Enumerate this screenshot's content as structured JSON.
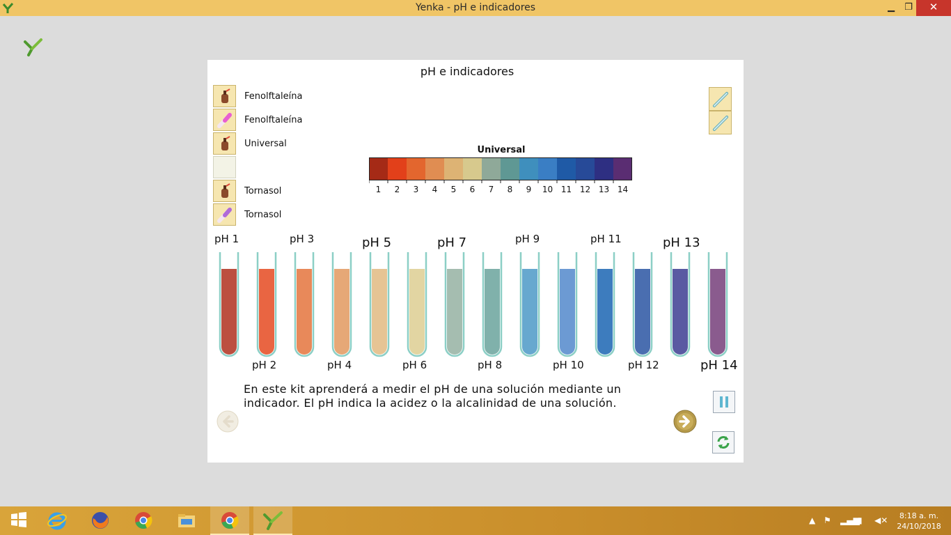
{
  "window": {
    "title": "Yenka - pH e indicadores",
    "controls": {
      "minimize": "▁",
      "maximize": "❐",
      "close": "✕"
    }
  },
  "panel": {
    "title": "pH e indicadores",
    "indicators": [
      {
        "label": "Fenolftaleína",
        "icon": "dropper-bottle-icon",
        "color": "#8b4a2a"
      },
      {
        "label": "Fenolftaleína",
        "icon": "indicator-strip-icon",
        "color": "#e85fd0"
      },
      {
        "label": "Universal",
        "icon": "dropper-bottle-icon",
        "color": "#8b4a2a"
      },
      {
        "label": "",
        "icon": "",
        "color": ""
      },
      {
        "label": "Tornasol",
        "icon": "dropper-bottle-icon",
        "color": "#8b4a2a"
      },
      {
        "label": "Tornasol",
        "icon": "indicator-strip-icon",
        "color": "#b06ad8"
      }
    ],
    "scale": {
      "title": "Universal",
      "ticks": [
        "1",
        "2",
        "3",
        "4",
        "5",
        "6",
        "7",
        "8",
        "9",
        "10",
        "11",
        "12",
        "13",
        "14"
      ],
      "colors": [
        "#a52a16",
        "#e2401a",
        "#e3662e",
        "#e08d52",
        "#ddb374",
        "#d7c98d",
        "#8fa999",
        "#5f9894",
        "#3f8fbd",
        "#3a7ec4",
        "#1f5aa6",
        "#274a98",
        "#2e2f82",
        "#5a2d72"
      ]
    },
    "tubes": [
      {
        "label": "pH 1",
        "color": "#bc4f40",
        "big": false
      },
      {
        "label": "pH 2",
        "color": "#e96542",
        "big": false
      },
      {
        "label": "pH 3",
        "color": "#e8895a",
        "big": false
      },
      {
        "label": "pH 4",
        "color": "#e6a877",
        "big": false
      },
      {
        "label": "pH 5",
        "color": "#e6c494",
        "big": true
      },
      {
        "label": "pH 6",
        "color": "#e2d5a2",
        "big": false
      },
      {
        "label": "pH 7",
        "color": "#a5bdb0",
        "big": true
      },
      {
        "label": "pH 8",
        "color": "#80b1ab",
        "big": false
      },
      {
        "label": "pH 9",
        "color": "#67a8cf",
        "big": false
      },
      {
        "label": "pH 10",
        "color": "#6c9ad3",
        "big": false
      },
      {
        "label": "pH 11",
        "color": "#3d7cbe",
        "big": false
      },
      {
        "label": "pH 12",
        "color": "#4a6eb0",
        "big": false
      },
      {
        "label": "pH 13",
        "color": "#5a5aa2",
        "big": true
      },
      {
        "label": "pH 14",
        "color": "#8a5b8e",
        "big": true
      }
    ],
    "message": "En este kit aprenderá a medir el pH de una solución mediante un indicador. El pH indica la acidez o la alcalinidad de una solución."
  },
  "taskbar": {
    "apps": [
      "windows-start-icon",
      "internet-explorer-icon",
      "firefox-icon",
      "chrome-icon",
      "file-explorer-icon",
      "chrome-icon",
      "yenka-icon"
    ],
    "time": "8:18 a. m.",
    "date": "24/10/2018"
  }
}
